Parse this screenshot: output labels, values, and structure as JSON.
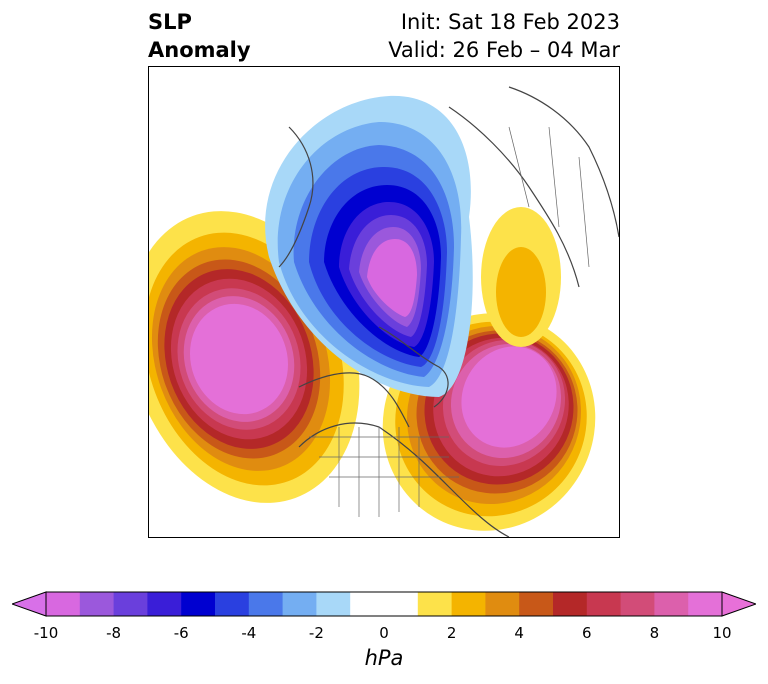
{
  "title": {
    "left": [
      "SLP",
      "Anomaly"
    ],
    "right": [
      "Init: Sat 18 Feb 2023",
      "Valid: 26 Feb – 04 Mar"
    ]
  },
  "map": {
    "variable": "Sea level pressure anomaly",
    "projection": "polar-stereographic",
    "features": [
      "pink-low-anomaly-arctic",
      "blue-ring-greenland-canada",
      "red-high-pacific",
      "red-high-atlantic",
      "yellow-europe",
      "white-neutral-zone"
    ]
  },
  "colorbar": {
    "units": "hPa",
    "tick_labels": [
      "-10",
      "-8",
      "-6",
      "-4",
      "-2",
      "0",
      "2",
      "4",
      "6",
      "8",
      "10"
    ],
    "colors": [
      "#d868e0",
      "#9b58dc",
      "#6a3fdc",
      "#3a1ed8",
      "#0000d0",
      "#2a40e0",
      "#4a78ea",
      "#74aef2",
      "#a8d8f8",
      "#ffffff",
      "#ffffff",
      "#fde24a",
      "#f4b400",
      "#e08c10",
      "#c85818",
      "#b42828",
      "#c83850",
      "#d24c78",
      "#dc60ac",
      "#e470d8"
    ],
    "extend_low_color": "#d870e8",
    "extend_high_color": "#e870d8"
  }
}
